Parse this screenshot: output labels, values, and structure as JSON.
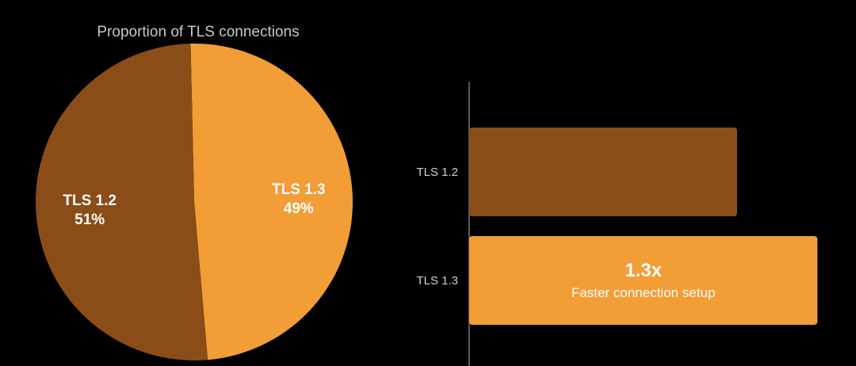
{
  "chart_data": [
    {
      "type": "pie",
      "title": "Proportion of TLS connections",
      "slices": [
        {
          "name": "TLS 1.3",
          "value": 49,
          "label": "49%",
          "color": "#f29d36"
        },
        {
          "name": "TLS 1.2",
          "value": 51,
          "label": "51%",
          "color": "#8b4d18"
        }
      ]
    },
    {
      "type": "bar",
      "orientation": "horizontal",
      "categories": [
        "TLS 1.2",
        "TLS 1.3"
      ],
      "values": [
        1.0,
        1.3
      ],
      "colors": [
        "#8b4d18",
        "#f29d36"
      ],
      "annotation": {
        "value": "1.3x",
        "caption": "Faster connection setup"
      }
    }
  ]
}
